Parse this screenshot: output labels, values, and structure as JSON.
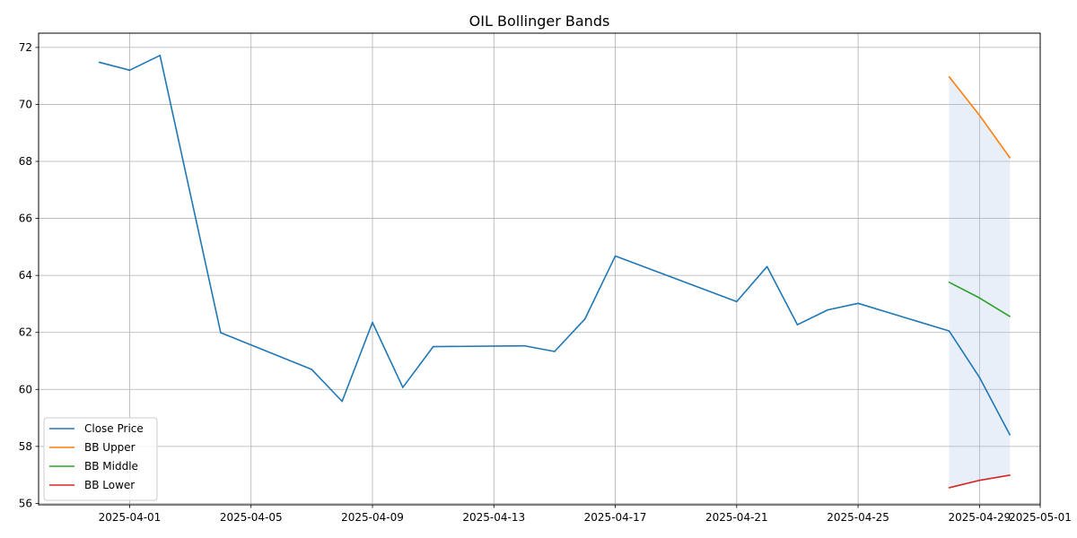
{
  "chart_data": {
    "type": "line",
    "title": "OIL Bollinger Bands",
    "xlabel": "",
    "ylabel": "",
    "grid": true,
    "legend_position": "lower-left",
    "xlim": [
      "2025-03-29",
      "2025-05-01"
    ],
    "ylim": [
      55.95,
      72.5
    ],
    "x_ticks": [
      "2025-04-01",
      "2025-04-05",
      "2025-04-09",
      "2025-04-13",
      "2025-04-17",
      "2025-04-21",
      "2025-04-25",
      "2025-04-29",
      "2025-05-01"
    ],
    "y_ticks": [
      56,
      58,
      60,
      62,
      64,
      66,
      68,
      70,
      72
    ],
    "series": [
      {
        "name": "Close Price",
        "color": "#1f77b4",
        "points": [
          [
            "2025-03-31",
            71.48
          ],
          [
            "2025-04-01",
            71.2
          ],
          [
            "2025-04-02",
            71.72
          ],
          [
            "2025-04-04",
            61.99
          ],
          [
            "2025-04-07",
            60.7
          ],
          [
            "2025-04-08",
            59.58
          ],
          [
            "2025-04-09",
            62.35
          ],
          [
            "2025-04-10",
            60.07
          ],
          [
            "2025-04-11",
            61.5
          ],
          [
            "2025-04-14",
            61.53
          ],
          [
            "2025-04-15",
            61.33
          ],
          [
            "2025-04-16",
            62.47
          ],
          [
            "2025-04-17",
            64.68
          ],
          [
            "2025-04-21",
            63.08
          ],
          [
            "2025-04-22",
            64.31
          ],
          [
            "2025-04-23",
            62.27
          ],
          [
            "2025-04-24",
            62.79
          ],
          [
            "2025-04-25",
            63.02
          ],
          [
            "2025-04-28",
            62.05
          ],
          [
            "2025-04-29",
            60.42
          ],
          [
            "2025-04-30",
            58.41
          ]
        ]
      },
      {
        "name": "BB Upper",
        "color": "#ff7f0e",
        "points": [
          [
            "2025-04-28",
            70.97
          ],
          [
            "2025-04-29",
            69.62
          ],
          [
            "2025-04-30",
            68.13
          ]
        ]
      },
      {
        "name": "BB Middle",
        "color": "#2ca02c",
        "points": [
          [
            "2025-04-28",
            63.76
          ],
          [
            "2025-04-29",
            63.21
          ],
          [
            "2025-04-30",
            62.56
          ]
        ]
      },
      {
        "name": "BB Lower",
        "color": "#d62728",
        "points": [
          [
            "2025-04-28",
            56.55
          ],
          [
            "2025-04-29",
            56.81
          ],
          [
            "2025-04-30",
            56.99
          ]
        ]
      }
    ],
    "band_fill": {
      "between": [
        "BB Upper",
        "BB Lower"
      ],
      "color": "#aec7e8"
    }
  }
}
